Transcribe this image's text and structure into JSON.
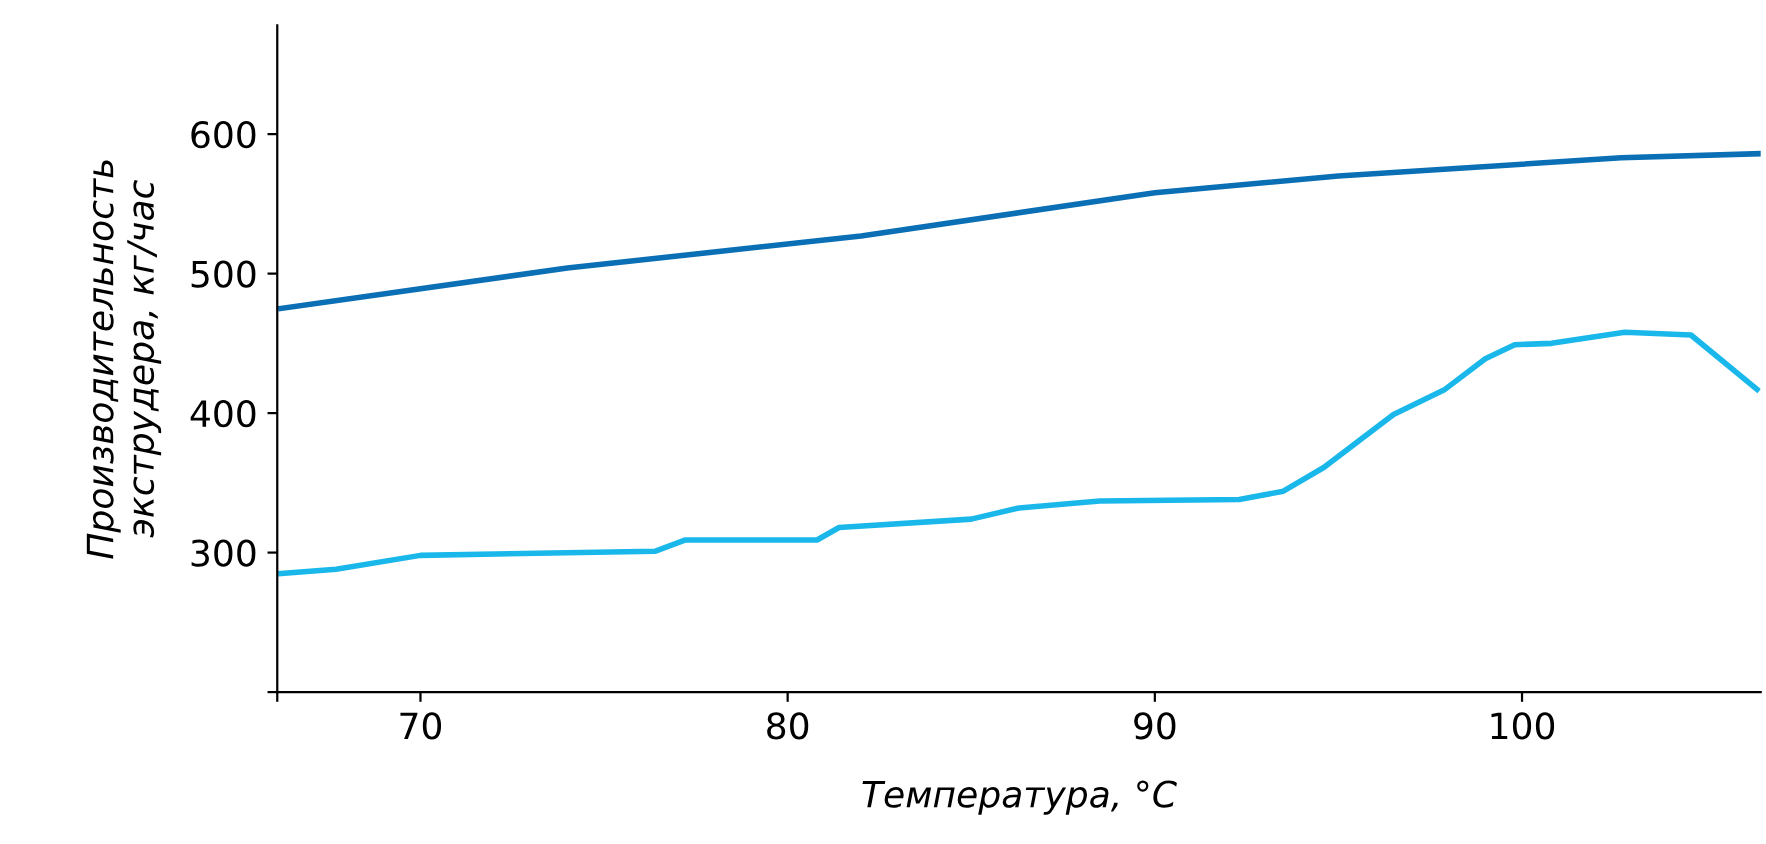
{
  "chart_data": {
    "type": "line",
    "xlabel": "Температура, °C",
    "ylabel": "Производительность\nэкструдера, кг/час",
    "xlim": [
      66.1,
      106.5
    ],
    "xticks": [
      {
        "value": 66.1,
        "label": null
      },
      70,
      80,
      90,
      100
    ],
    "ylim": [
      200,
      678
    ],
    "yticks": [
      {
        "value": 200,
        "label": null
      },
      300,
      400,
      500,
      600
    ],
    "grid": false,
    "legend": false,
    "series": [
      {
        "color": "#0a6fb5",
        "x": [
          66.2,
          74,
          82,
          90,
          95,
          102.7,
          106.5
        ],
        "values": [
          475,
          504,
          527,
          558,
          570,
          583,
          586
        ]
      },
      {
        "color": "#1ab8ea",
        "x": [
          66.2,
          67.7,
          70,
          76.4,
          77.2,
          80.8,
          81.4,
          85,
          86.3,
          88.5,
          92.3,
          93.5,
          94.6,
          96.5,
          97.9,
          99,
          99.8,
          100.8,
          102.8,
          104.6,
          106.4
        ],
        "values": [
          285,
          288,
          298,
          301,
          309,
          309,
          318,
          324,
          332,
          337,
          338,
          344,
          361,
          399,
          417,
          439,
          449,
          450,
          458,
          456,
          417
        ]
      }
    ]
  }
}
